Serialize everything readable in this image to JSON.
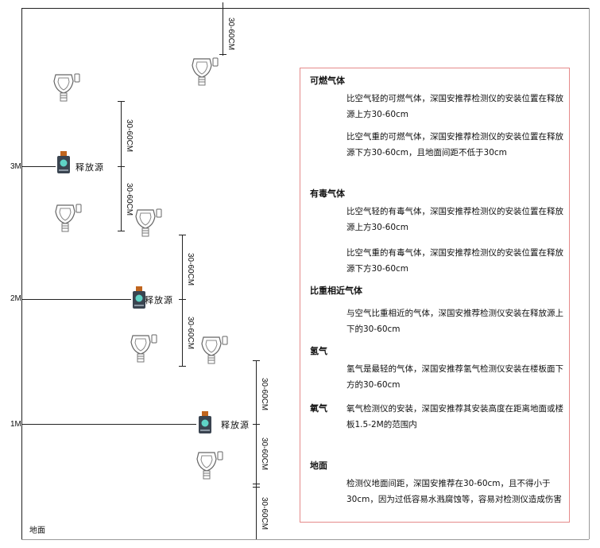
{
  "levels": {
    "l3": "3M",
    "l2": "2M",
    "l1": "1M",
    "ground": "地面"
  },
  "dimension_label": "30-60CM",
  "source_label": "释放源",
  "colors": {
    "frame": "#222222",
    "info_border": "#e58a8a",
    "source_cap": "#c0651e",
    "source_body": "#3a4450",
    "source_face": "#5fd3c6"
  },
  "info": {
    "combustible": {
      "title": "可燃气体",
      "p1": "比空气轻的可燃气体，深国安推荐检测仪的安装位置在释放源上方30-60cm",
      "p2": "比空气重的可燃气体，深国安推荐检测仪的安装位置在释放源下方30-60cm，且地面间距不低于30cm"
    },
    "toxic": {
      "title": "有毒气体",
      "p1": "比空气轻的有毒气体，深国安推荐检测仪的安装位置在释放源上方30-60cm",
      "p2": "比空气重的有毒气体，深国安推荐检测仪的安装位置在释放源下方30-60cm"
    },
    "similar": {
      "title": "比重相近气体",
      "p1": "与空气比重相近的气体，深国安推荐检测仪安装在释放源上下的30-60cm"
    },
    "hydrogen": {
      "title": "氢气",
      "p1": "氢气是最轻的气体，深国安推荐氢气检测仪安装在楼板面下方的30-60cm"
    },
    "oxygen": {
      "title": "氧气",
      "p1": "氧气检测仪的安装，深国安推荐其安装高度在距离地面或楼板1.5-2M的范围内"
    },
    "ground": {
      "title": "地面",
      "p1": "检测仪地面间距，深国安推荐在30-60cm，且不得小于30cm，因为过低容易水溅腐蚀等，容易对检测仪造成伤害"
    }
  }
}
